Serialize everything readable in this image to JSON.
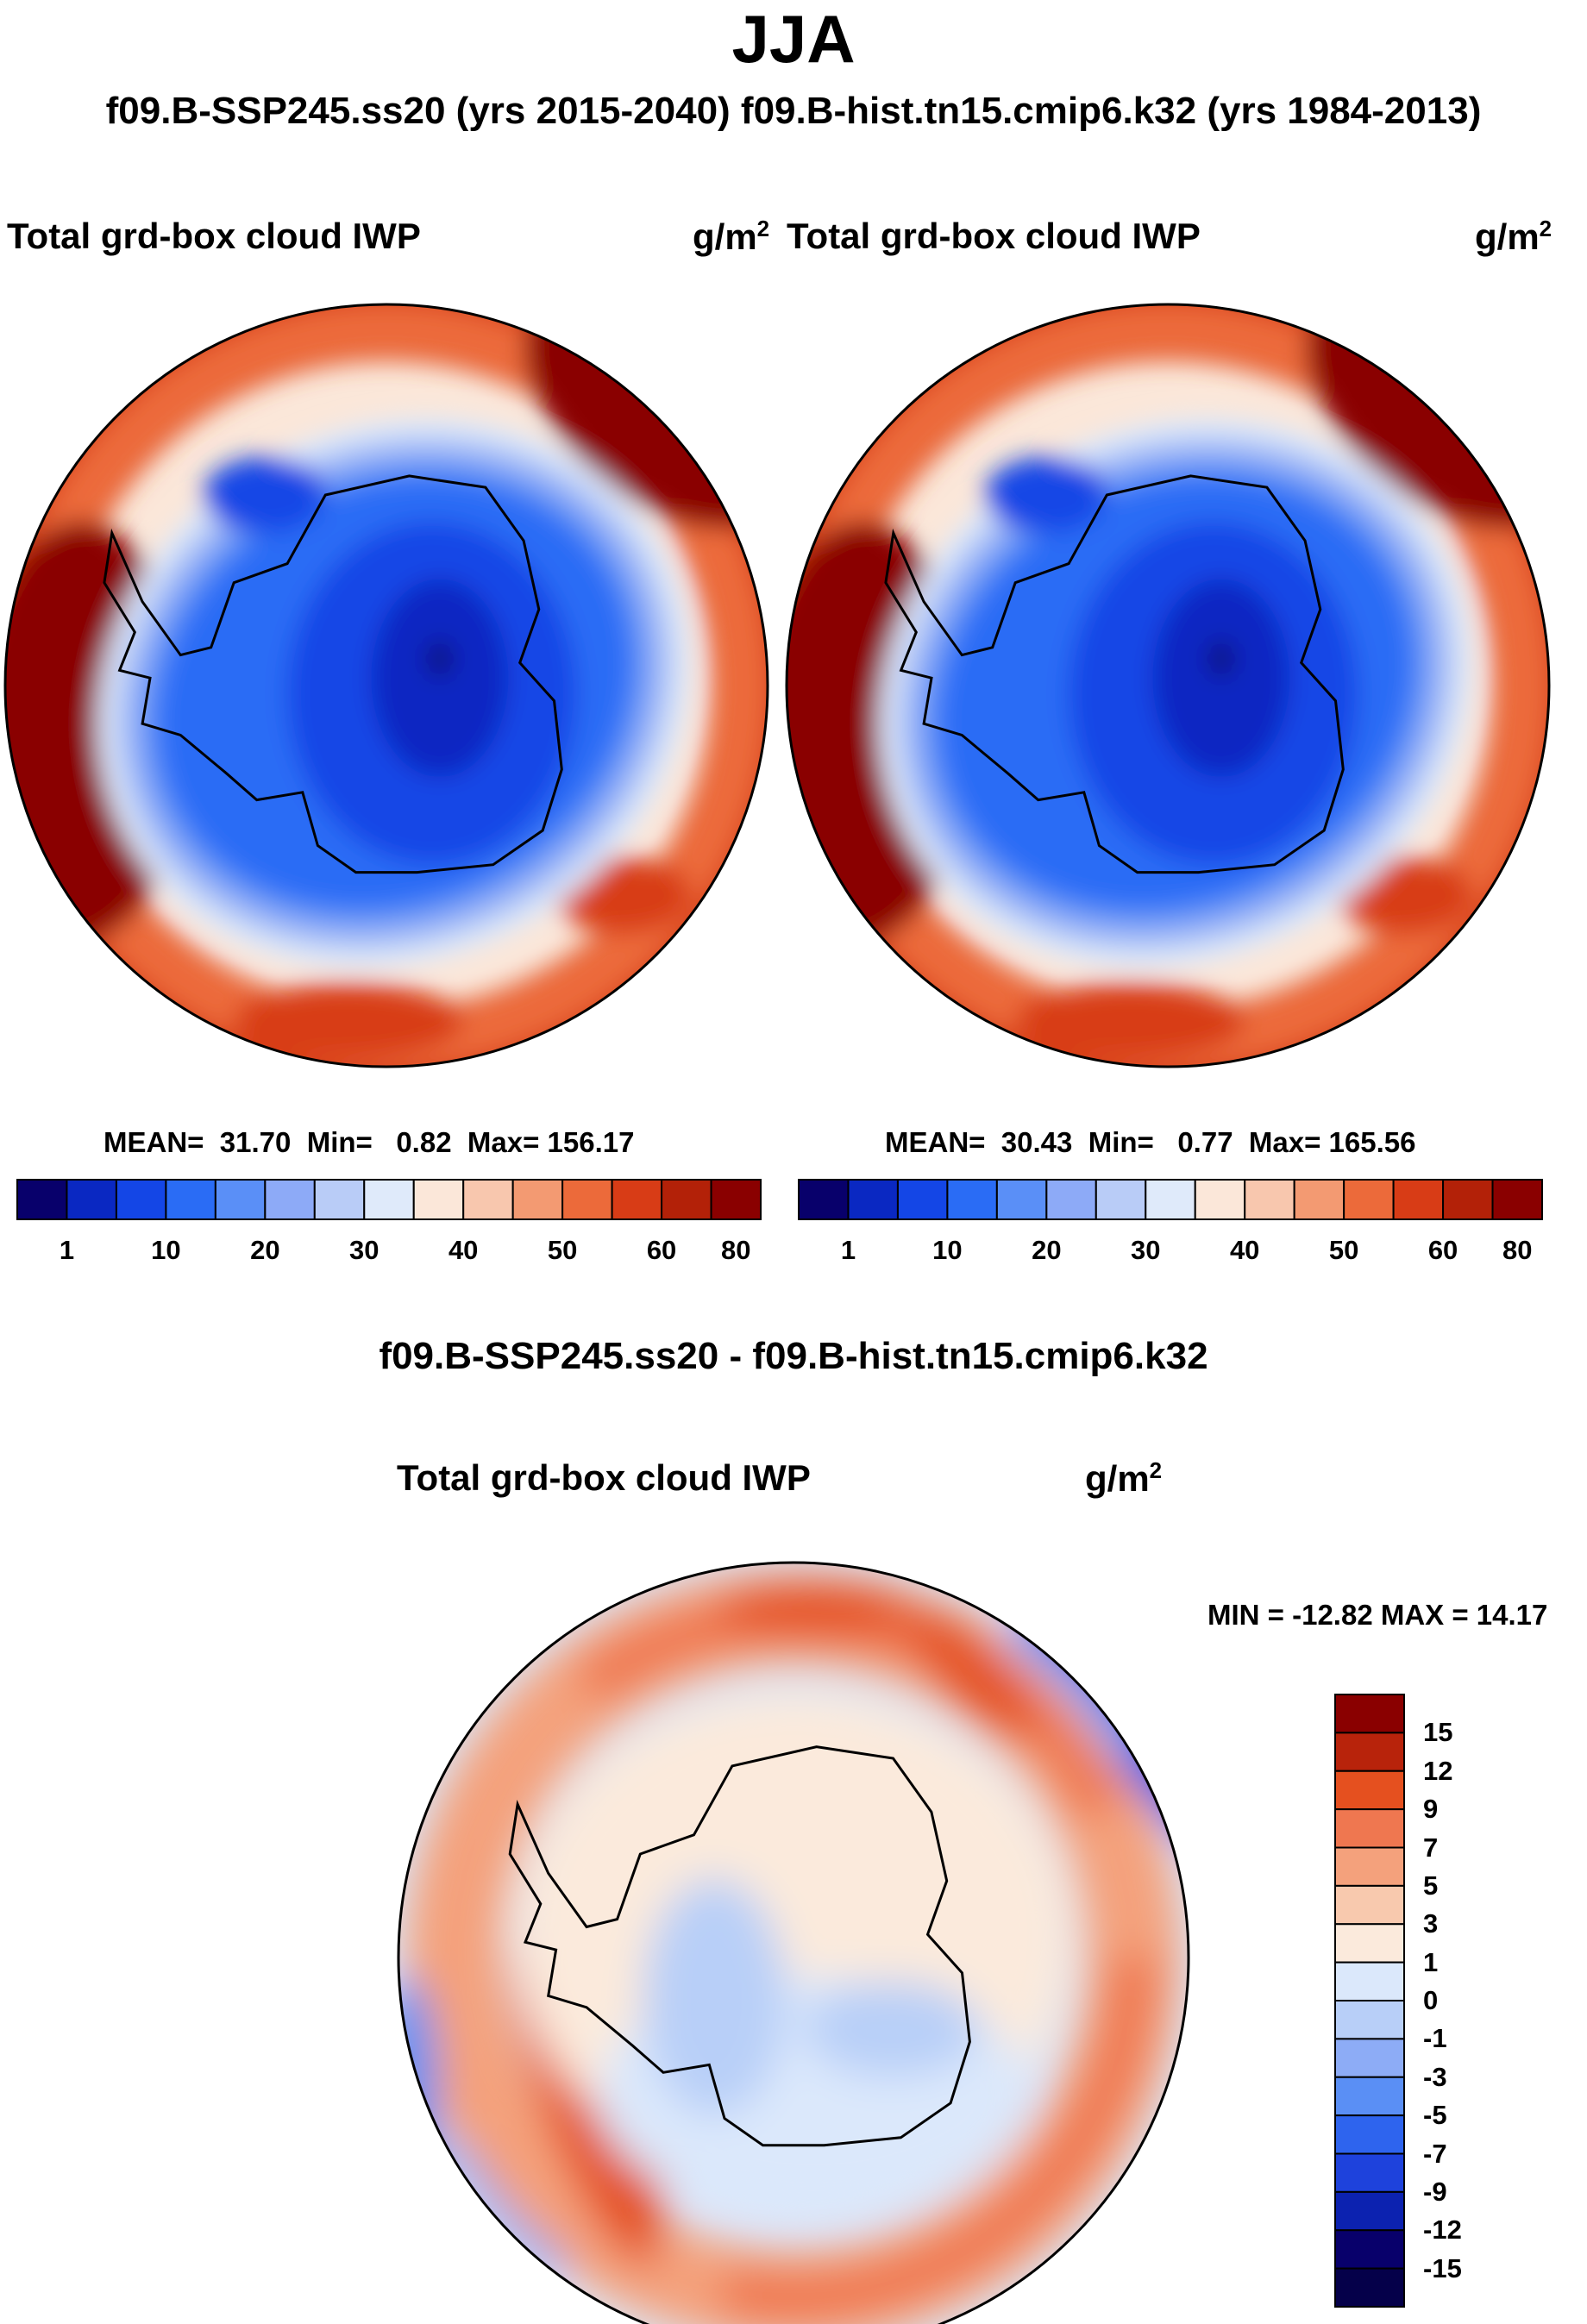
{
  "title": "JJA",
  "subtitle": "f09.B-SSP245.ss20 (yrs 2015-2040)  f09.B-hist.tn15.cmip6.k32 (yrs 1984-2013)",
  "colors": {
    "abs": [
      "#08006b",
      "#0a28c2",
      "#1446e6",
      "#2a6cf5",
      "#5a8ff7",
      "#8daaf7",
      "#b9ccf7",
      "#dfeafa",
      "#fbe7d9",
      "#f8c7ae",
      "#f39a72",
      "#ec6a3a",
      "#d83c16",
      "#b32108",
      "#8a0000"
    ],
    "diff": [
      "#08006b",
      "#0c22b0",
      "#1e42dc",
      "#2e64ee",
      "#5a8ff5",
      "#8dacf6",
      "#b8cff8",
      "#dbe8fb",
      "#fbeadc",
      "#f8c9ae",
      "#f4a17c",
      "#ef7750",
      "#e5501f",
      "#b8230b",
      "#8a0000"
    ]
  },
  "chart_data": [
    {
      "type": "heatmap",
      "projection": "south-polar stereographic",
      "panel": "SSP245 2015-2040",
      "label": "Total grd-box cloud IWP",
      "units_base": "g/m",
      "units_exp": "2",
      "stats": {
        "mean_label": "MEAN=",
        "mean": "31.70",
        "min_label": "Min=",
        "min": "0.82",
        "max_label": "Max=",
        "max": "156.17"
      },
      "colorbar": {
        "levels": [
          1,
          5,
          10,
          15,
          20,
          25,
          30,
          35,
          40,
          45,
          50,
          55,
          60,
          70,
          80
        ],
        "tick_labels": [
          "1",
          "10",
          "20",
          "30",
          "40",
          "50",
          "60",
          "80"
        ]
      }
    },
    {
      "type": "heatmap",
      "projection": "south-polar stereographic",
      "panel": "hist 1984-2013",
      "label": "Total grd-box cloud IWP",
      "units_base": "g/m",
      "units_exp": "2",
      "stats": {
        "mean_label": "MEAN=",
        "mean": "30.43",
        "min_label": "Min=",
        "min": "0.77",
        "max_label": "Max=",
        "max": "165.56"
      },
      "colorbar": {
        "levels": [
          1,
          5,
          10,
          15,
          20,
          25,
          30,
          35,
          40,
          45,
          50,
          55,
          60,
          70,
          80
        ],
        "tick_labels": [
          "1",
          "10",
          "20",
          "30",
          "40",
          "50",
          "60",
          "80"
        ]
      }
    },
    {
      "type": "heatmap",
      "projection": "south-polar stereographic",
      "panel": "difference",
      "title": "f09.B-SSP245.ss20 - f09.B-hist.tn15.cmip6.k32",
      "label": "Total grd-box cloud IWP",
      "units_base": "g/m",
      "units_exp": "2",
      "minmax_text": "MIN = -12.82 MAX =  14.17",
      "min": -12.82,
      "max": 14.17,
      "colorbar": {
        "tick_labels": [
          "15",
          "12",
          "9",
          "7",
          "5",
          "3",
          "1",
          "0",
          "-1",
          "-3",
          "-5",
          "-7",
          "-9",
          "-12",
          "-15"
        ]
      }
    }
  ]
}
